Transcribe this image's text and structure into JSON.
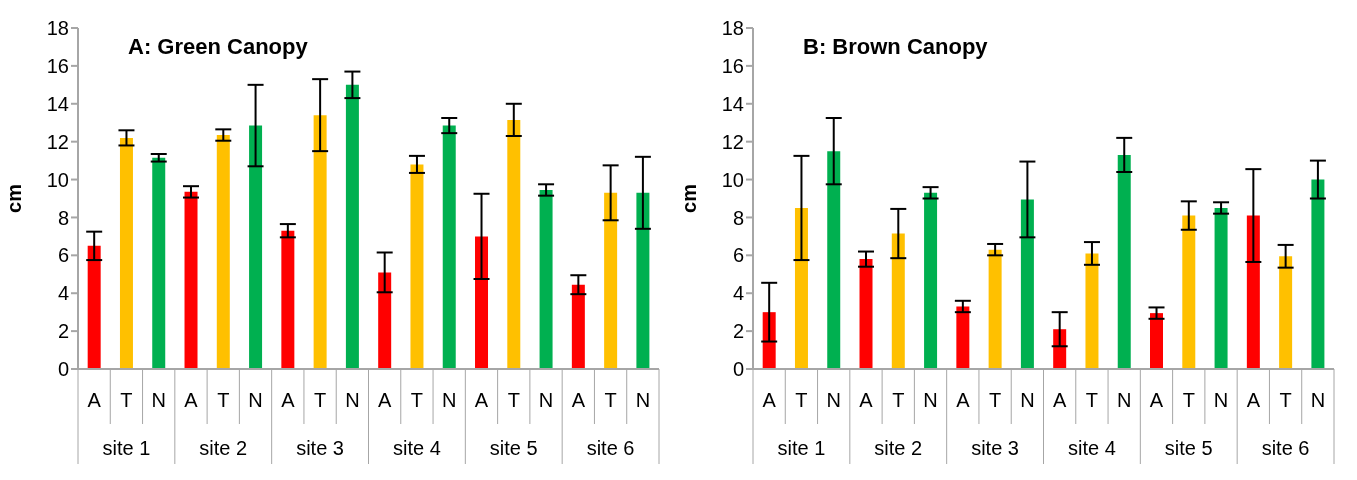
{
  "chart_data": [
    {
      "type": "bar",
      "title": "A: Green Canopy",
      "ylabel": "cm",
      "categories": [
        "A",
        "T",
        "N",
        "A",
        "T",
        "N",
        "A",
        "T",
        "N",
        "A",
        "T",
        "N",
        "A",
        "T",
        "N",
        "A",
        "T",
        "N"
      ],
      "values": [
        6.5,
        12.2,
        11.15,
        9.35,
        12.35,
        12.85,
        7.3,
        13.4,
        15.0,
        5.1,
        10.8,
        12.85,
        7.0,
        13.15,
        9.45,
        4.45,
        9.3,
        9.3
      ],
      "errors": [
        0.75,
        0.4,
        0.2,
        0.3,
        0.3,
        2.15,
        0.35,
        1.9,
        0.7,
        1.05,
        0.45,
        0.4,
        2.25,
        0.85,
        0.3,
        0.5,
        1.45,
        1.9
      ],
      "colors": [
        "#ff0000",
        "#ffc000",
        "#00b050",
        "#ff0000",
        "#ffc000",
        "#00b050",
        "#ff0000",
        "#ffc000",
        "#00b050",
        "#ff0000",
        "#ffc000",
        "#00b050",
        "#ff0000",
        "#ffc000",
        "#00b050",
        "#ff0000",
        "#ffc000",
        "#00b050"
      ],
      "annotations": [
        "site 1",
        "site 2",
        "site 3",
        "site 4",
        "site 5",
        "site 6"
      ],
      "ylim": [
        0,
        18
      ],
      "yticks": [
        0,
        2,
        4,
        6,
        8,
        10,
        12,
        14,
        16,
        18
      ],
      "grid": false,
      "legend": false
    },
    {
      "type": "bar",
      "title": "B: Brown Canopy",
      "ylabel": "cm",
      "categories": [
        "A",
        "T",
        "N",
        "A",
        "T",
        "N",
        "A",
        "T",
        "N",
        "A",
        "T",
        "N",
        "A",
        "T",
        "N",
        "A",
        "T",
        "N"
      ],
      "values": [
        3.0,
        8.5,
        11.5,
        5.8,
        7.15,
        9.3,
        3.3,
        6.3,
        8.95,
        2.1,
        6.1,
        11.3,
        2.95,
        8.1,
        8.5,
        8.1,
        5.95,
        10.0
      ],
      "errors": [
        1.55,
        2.75,
        1.75,
        0.4,
        1.3,
        0.3,
        0.3,
        0.3,
        2.0,
        0.9,
        0.6,
        0.9,
        0.3,
        0.75,
        0.3,
        2.45,
        0.6,
        1.0
      ],
      "colors": [
        "#ff0000",
        "#ffc000",
        "#00b050",
        "#ff0000",
        "#ffc000",
        "#00b050",
        "#ff0000",
        "#ffc000",
        "#00b050",
        "#ff0000",
        "#ffc000",
        "#00b050",
        "#ff0000",
        "#ffc000",
        "#00b050",
        "#ff0000",
        "#ffc000",
        "#00b050"
      ],
      "annotations": [
        "site 1",
        "site 2",
        "site 3",
        "site 4",
        "site 5",
        "site 6"
      ],
      "ylim": [
        0,
        18
      ],
      "yticks": [
        0,
        2,
        4,
        6,
        8,
        10,
        12,
        14,
        16,
        18
      ],
      "grid": false,
      "legend": false
    }
  ]
}
